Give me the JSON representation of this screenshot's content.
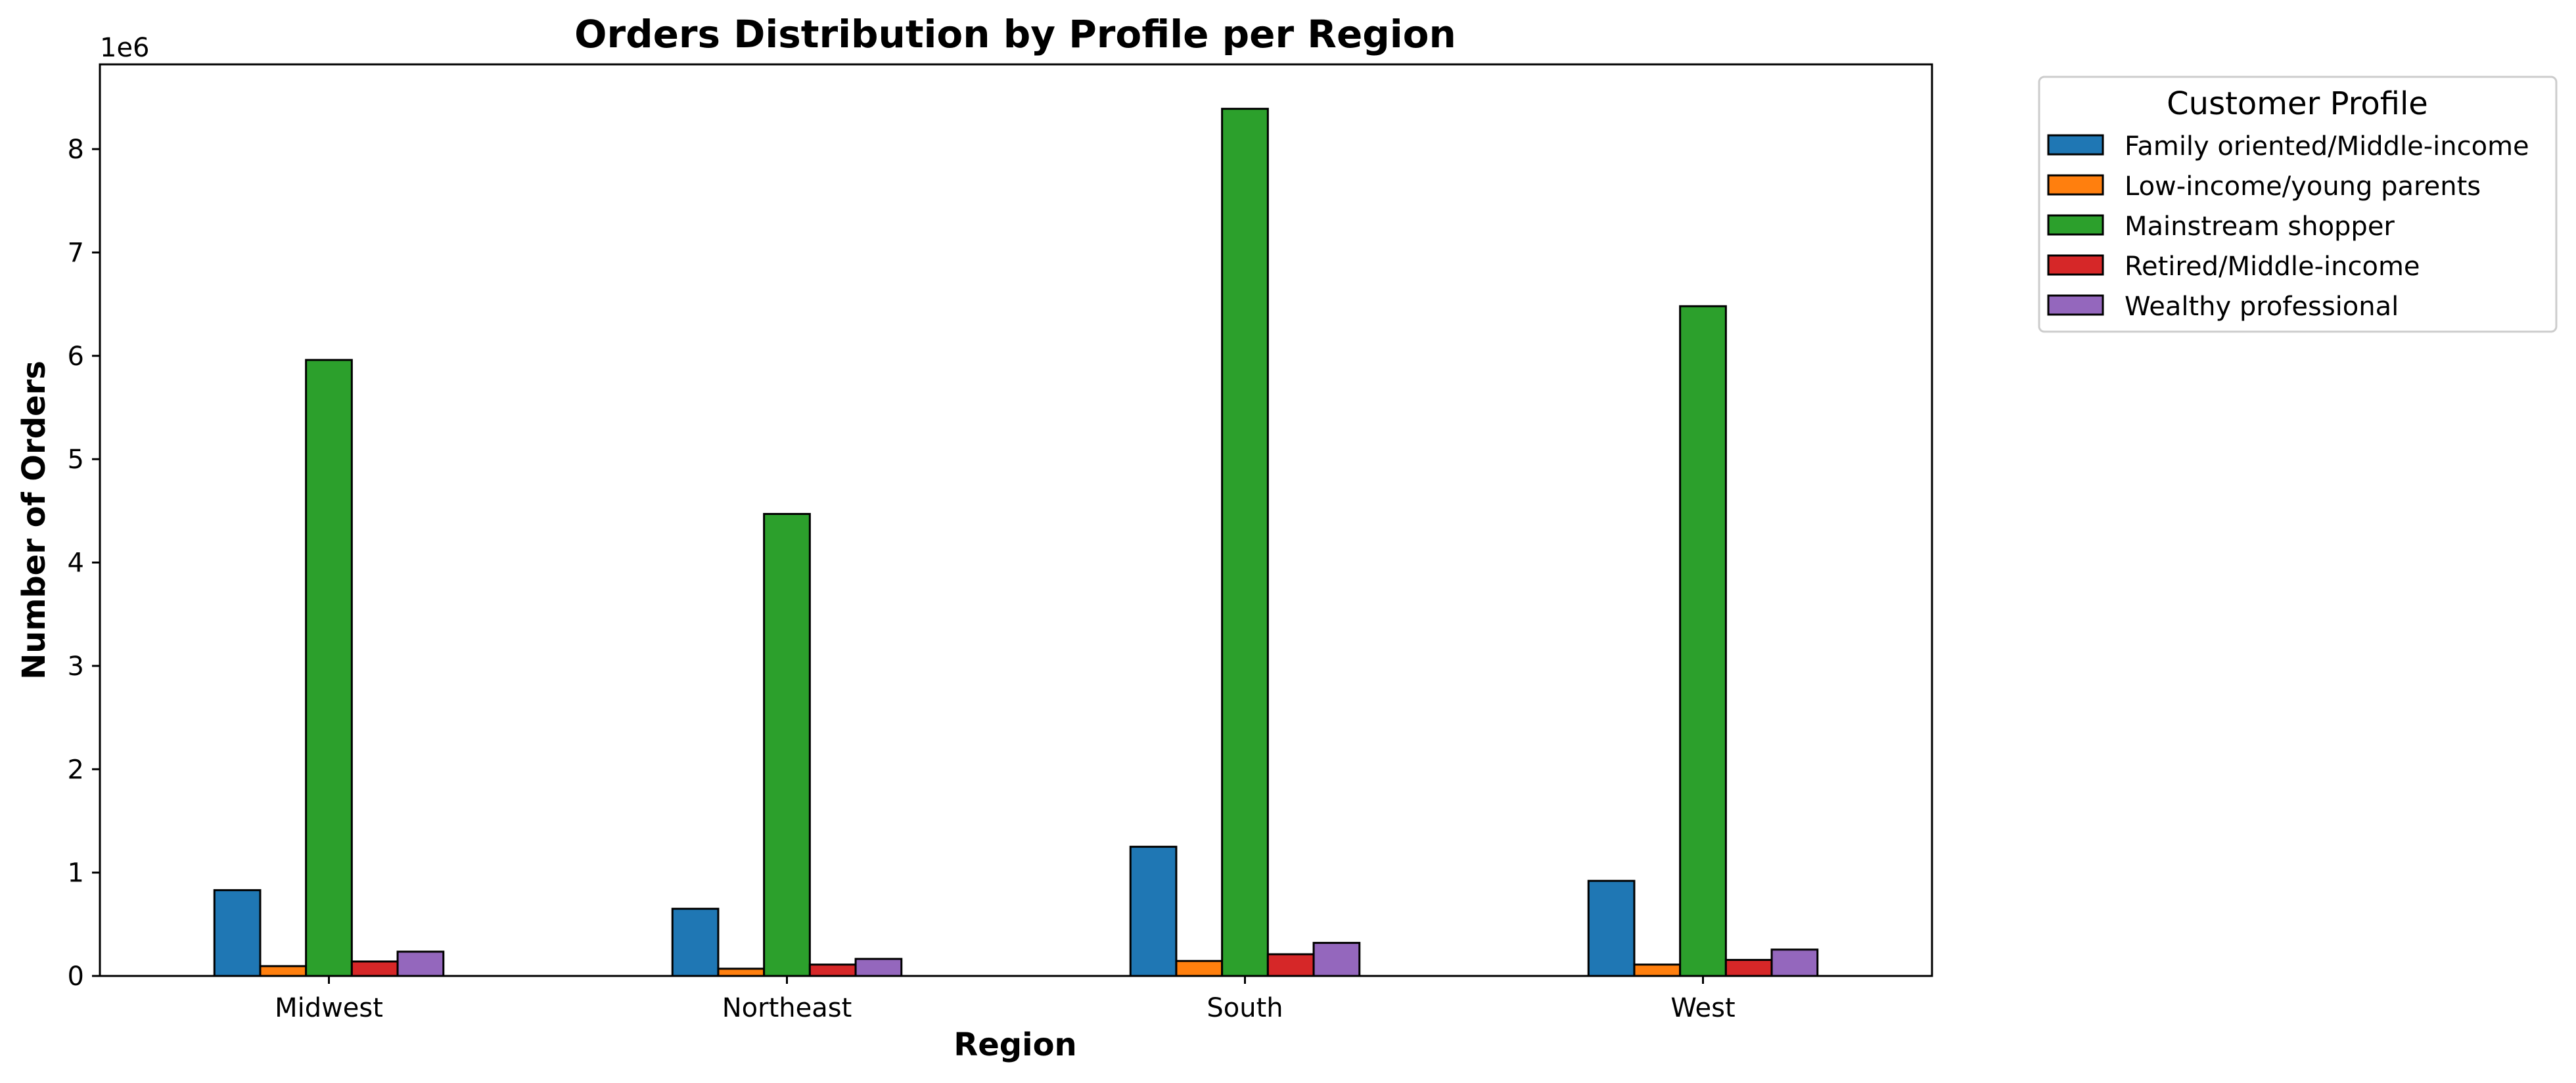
{
  "chart_data": {
    "type": "bar",
    "title": "Orders Distribution by Profile per Region",
    "xlabel": "Region",
    "ylabel": "Number of Orders",
    "y_offset_label": "1e6",
    "y_scale": 1000000,
    "ylim": [
      0,
      8820000
    ],
    "yticks": [
      0,
      1000000,
      2000000,
      3000000,
      4000000,
      5000000,
      6000000,
      7000000,
      8000000
    ],
    "ytick_labels": [
      "0",
      "1",
      "2",
      "3",
      "4",
      "5",
      "6",
      "7",
      "8"
    ],
    "grid": false,
    "legend_title": "Customer Profile",
    "legend_position": "outside-top-right",
    "categories": [
      "Midwest",
      "Northeast",
      "South",
      "West"
    ],
    "series": [
      {
        "name": "Family oriented/Middle-income",
        "color": "#1f77b4",
        "values": [
          830000,
          650000,
          1250000,
          920000
        ]
      },
      {
        "name": "Low-income/young parents",
        "color": "#ff7f0e",
        "values": [
          95000,
          70000,
          145000,
          110000
        ]
      },
      {
        "name": "Mainstream shopper",
        "color": "#2ca02c",
        "values": [
          5960000,
          4470000,
          8390000,
          6480000
        ]
      },
      {
        "name": "Retired/Middle-income",
        "color": "#d62728",
        "values": [
          140000,
          110000,
          210000,
          155000
        ]
      },
      {
        "name": "Wealthy professional",
        "color": "#9467bd",
        "values": [
          235000,
          165000,
          320000,
          255000
        ]
      }
    ]
  }
}
